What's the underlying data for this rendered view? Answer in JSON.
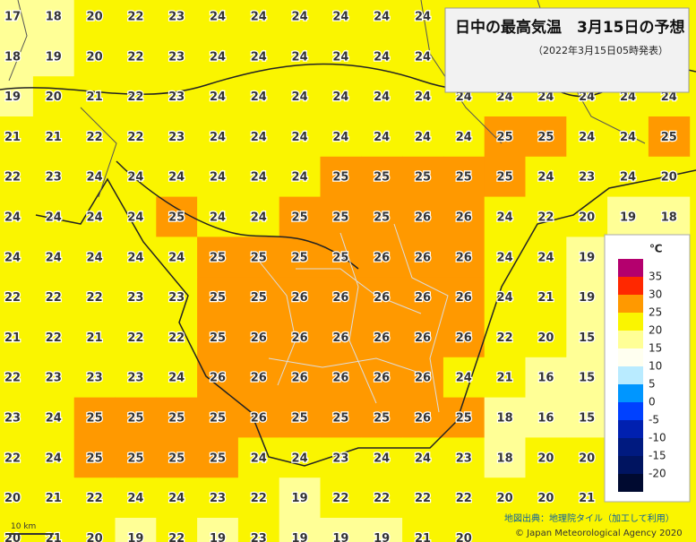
{
  "header": {
    "title": "日中の最高気温　3月15日の予想",
    "subtitle": "（2022年3月15日05時発表）"
  },
  "grid": {
    "rows": [
      [
        17,
        18,
        20,
        22,
        23,
        24,
        24,
        24,
        24,
        24,
        24
      ],
      [
        18,
        19,
        20,
        22,
        23,
        24,
        24,
        24,
        24,
        24,
        24
      ],
      [
        19,
        20,
        21,
        22,
        23,
        24,
        24,
        24,
        24,
        24,
        24,
        24,
        24,
        24,
        24,
        24,
        24
      ],
      [
        21,
        21,
        22,
        22,
        23,
        24,
        24,
        24,
        24,
        24,
        24,
        24,
        25,
        25,
        24,
        24,
        25
      ],
      [
        22,
        23,
        24,
        24,
        24,
        24,
        24,
        24,
        25,
        25,
        25,
        25,
        25,
        24,
        23,
        24,
        20
      ],
      [
        24,
        24,
        24,
        24,
        25,
        24,
        24,
        25,
        25,
        25,
        26,
        26,
        24,
        22,
        20,
        19,
        18
      ],
      [
        24,
        24,
        24,
        24,
        24,
        25,
        25,
        25,
        25,
        26,
        26,
        26,
        24,
        24,
        19
      ],
      [
        22,
        22,
        22,
        23,
        23,
        25,
        25,
        26,
        26,
        26,
        26,
        26,
        24,
        21,
        19
      ],
      [
        21,
        22,
        21,
        22,
        22,
        25,
        26,
        26,
        26,
        26,
        26,
        26,
        22,
        20,
        15
      ],
      [
        22,
        23,
        23,
        23,
        24,
        26,
        26,
        26,
        26,
        26,
        26,
        24,
        21,
        16,
        15
      ],
      [
        23,
        24,
        25,
        25,
        25,
        25,
        26,
        25,
        25,
        25,
        26,
        25,
        18,
        16,
        15
      ],
      [
        22,
        24,
        25,
        25,
        25,
        25,
        24,
        24,
        23,
        24,
        24,
        23,
        18,
        20,
        20
      ],
      [
        20,
        21,
        22,
        24,
        24,
        23,
        22,
        19,
        22,
        22,
        22,
        22,
        20,
        20,
        21
      ],
      [
        20,
        21,
        20,
        19,
        22,
        19,
        23,
        19,
        19,
        19,
        21,
        20
      ]
    ]
  },
  "legend": {
    "unit": "℃",
    "ticks": [
      35,
      30,
      25,
      20,
      15,
      10,
      5,
      0,
      -5,
      -10,
      -15,
      -20
    ],
    "colors": [
      "#b4006e",
      "#ff2800",
      "#ff9900",
      "#faf500",
      "#ffff96",
      "#fffff0",
      "#b9ebff",
      "#0096ff",
      "#0041ff",
      "#0020b0",
      "#001a80",
      "#001460",
      "#000a30"
    ]
  },
  "scale_label": "10 km",
  "attribution": {
    "source": "地図出典：地理院タイル（加工して利用）",
    "copyright": "© Japan Meteorological Agency 2020"
  }
}
